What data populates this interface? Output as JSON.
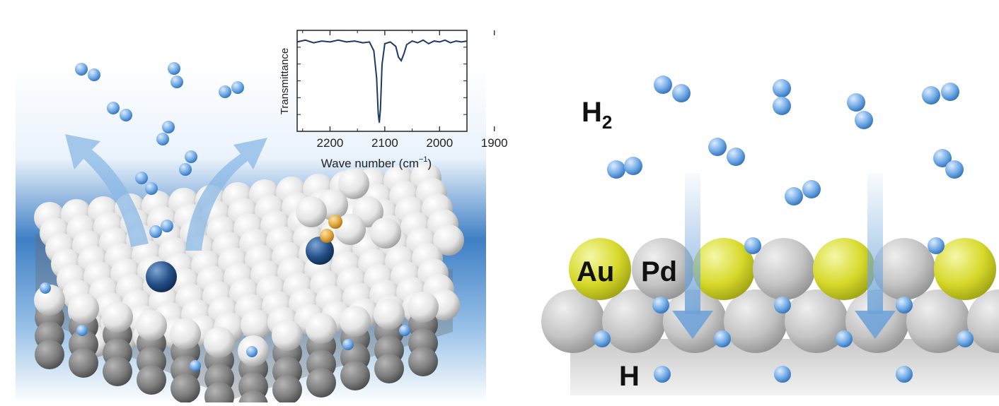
{
  "left_panel": {
    "inset": {
      "ylabel": "Transmittance",
      "xlabel_prefix": "Wave number (cm",
      "xlabel_sup": "−1",
      "xlabel_suffix": ")",
      "ticks": [
        "2200",
        "2100",
        "2000",
        "1900"
      ]
    }
  },
  "right_panel": {
    "h2_label_main": "H",
    "h2_label_sub": "2",
    "au_label": "Au",
    "pd_label": "Pd",
    "h_label": "H"
  },
  "chart_data": {
    "type": "line",
    "xlabel": "Wave number (cm−1)",
    "ylabel": "Transmittance",
    "xlim": [
      2260,
      1950
    ],
    "x_ticks": [
      2200,
      2100,
      2000,
      1900
    ],
    "series": [
      {
        "x": [
          2260,
          2245,
          2230,
          2215,
          2200,
          2185,
          2170,
          2155,
          2140,
          2128,
          2120,
          2115,
          2112,
          2110,
          2108,
          2105,
          2100,
          2090,
          2080,
          2075,
          2070,
          2065,
          2060,
          2050,
          2040,
          2030,
          2020,
          2010,
          2000,
          1990,
          1980,
          1970,
          1960,
          1950
        ],
        "y": [
          0.95,
          0.97,
          0.94,
          0.96,
          0.95,
          0.97,
          0.95,
          0.96,
          0.94,
          0.95,
          0.85,
          0.55,
          0.15,
          0.05,
          0.2,
          0.7,
          0.93,
          0.95,
          0.9,
          0.78,
          0.74,
          0.82,
          0.92,
          0.96,
          0.94,
          0.97,
          0.93,
          0.96,
          0.95,
          0.97,
          0.94,
          0.96,
          0.95,
          0.96
        ]
      }
    ]
  },
  "colors": {
    "h2_molecule": "#5e9cda",
    "pt_atom": "#e8e8e8",
    "pd_atom": "#c7c7c7",
    "au_atom": "#d9dc2f",
    "adsorbate": "#d9a43a",
    "arrow": "#6fa3d8",
    "line": "#1b3a66"
  }
}
